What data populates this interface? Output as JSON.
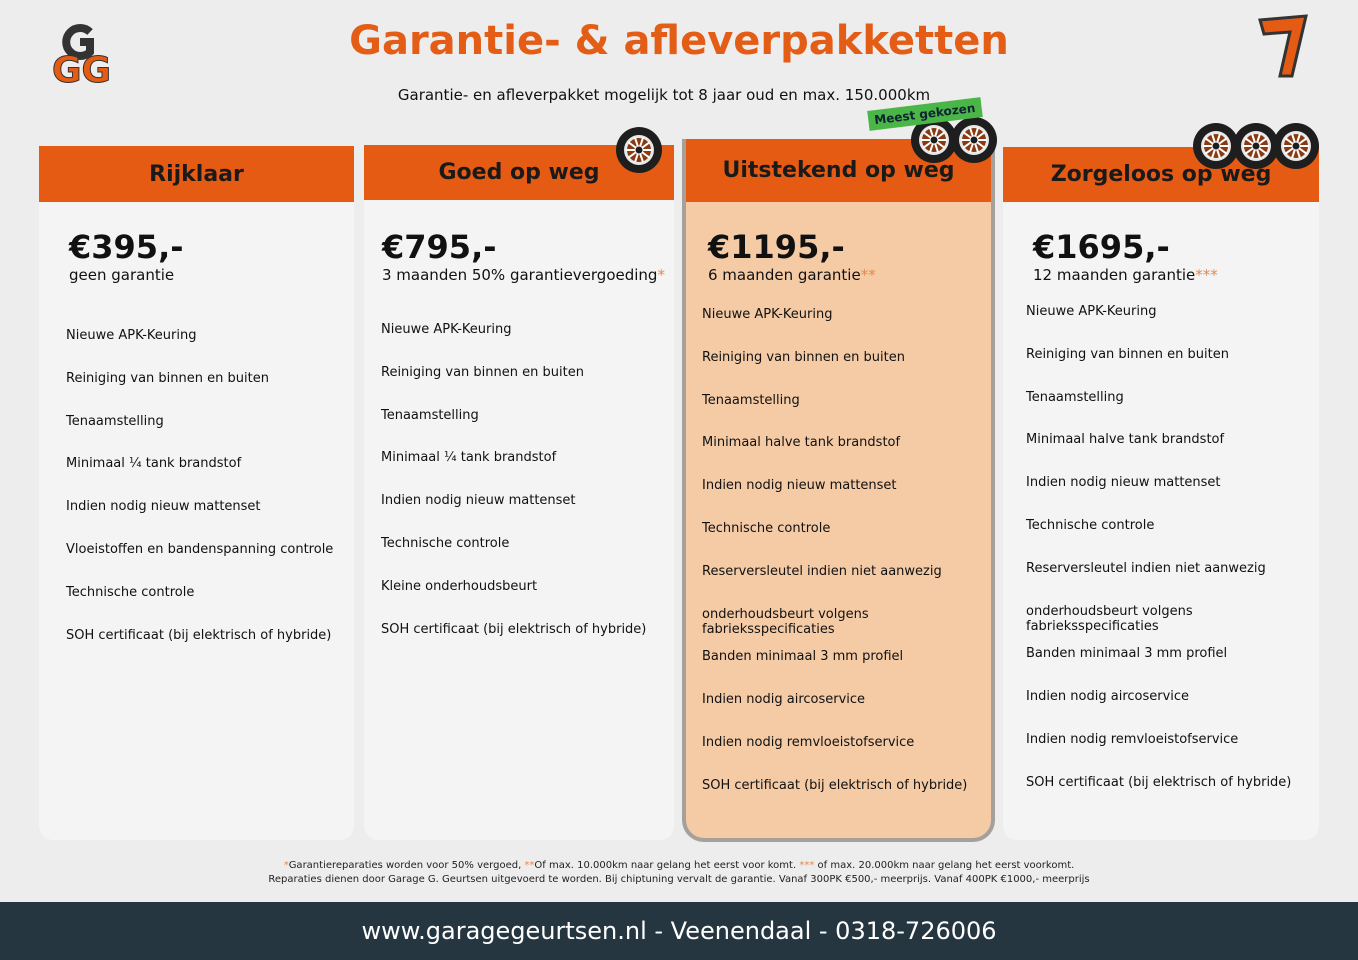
{
  "header": {
    "title": "Garantie- & afleverpakketten",
    "subtitle": "Garantie- en afleverpakket mogelijk tot 8 jaar oud en max. 150.000km",
    "logo_text": "GG",
    "badge_logo_text": "7"
  },
  "badge": "Meest gekozen",
  "colors": {
    "orange": "#e55b13",
    "highlight": "#f5cba6",
    "green": "#4bb648",
    "footer": "#263640"
  },
  "packages": [
    {
      "name": "Rijklaar",
      "price": "€395,-",
      "subtitle": "geen garantie",
      "stars": "",
      "tires": 0,
      "items": [
        "Nieuwe APK-Keuring",
        "Reiniging van binnen en buiten",
        "Tenaamstelling",
        "Minimaal ¼  tank brandstof",
        "Indien nodig nieuw mattenset",
        "Vloeistoffen en bandenspanning controle",
        "Technische controle",
        "SOH certificaat (bij elektrisch of hybride)"
      ]
    },
    {
      "name": "Goed op weg",
      "price": "€795,-",
      "subtitle": "3 maanden 50% garantievergoeding",
      "stars": "*",
      "tires": 1,
      "items": [
        "Nieuwe APK-Keuring",
        "Reiniging van binnen en buiten",
        "Tenaamstelling",
        "Minimaal ¼ tank brandstof",
        "Indien nodig nieuw mattenset",
        "Technische controle",
        "Kleine onderhoudsbeurt",
        "SOH certificaat (bij elektrisch of hybride)"
      ]
    },
    {
      "name": "Uitstekend op weg",
      "price": "€1195,-",
      "subtitle": "6 maanden garantie",
      "stars": "**",
      "tires": 2,
      "items": [
        "Nieuwe APK-Keuring",
        "Reiniging van binnen en buiten",
        "Tenaamstelling",
        "Minimaal halve tank brandstof",
        "Indien nodig nieuw mattenset",
        "Technische controle",
        "Reserversleutel indien niet aanwezig",
        "onderhoudsbeurt volgens fabrieksspecificaties",
        "Banden minimaal 3 mm profiel",
        "Indien nodig aircoservice",
        "Indien nodig remvloeistofservice",
        "SOH certificaat (bij elektrisch of hybride)"
      ]
    },
    {
      "name": "Zorgeloos op weg",
      "price": "€1695,-",
      "subtitle": "12 maanden garantie",
      "stars": "***",
      "tires": 3,
      "items": [
        "Nieuwe APK-Keuring",
        "Reiniging van binnen en buiten",
        "Tenaamstelling",
        "Minimaal halve tank brandstof",
        "Indien nodig nieuw mattenset",
        "Technische controle",
        "Reserversleutel indien niet aanwezig",
        "onderhoudsbeurt volgens fabrieksspecificaties",
        "Banden minimaal 3 mm profiel",
        "Indien nodig aircoservice",
        "Indien nodig remvloeistofservice",
        "SOH certificaat (bij elektrisch of hybride)"
      ]
    }
  ],
  "footnotes": {
    "s1": "*",
    "t1": "Garantiereparaties worden voor 50% vergoed, ",
    "s2": "**",
    "t2": "Of max. 10.000km naar gelang het eerst voor komt. ",
    "s3": "***",
    "t3": " of max. 20.000km naar gelang het eerst voorkomt.",
    "line2": "Reparaties dienen door Garage G. Geurtsen uitgevoerd te worden. Bij chiptuning vervalt de garantie. Vanaf 300PK €500,- meerprijs. Vanaf 400PK €1000,- meerprijs"
  },
  "footer": "www.garagegeurtsen.nl - Veenendaal - 0318-726006"
}
